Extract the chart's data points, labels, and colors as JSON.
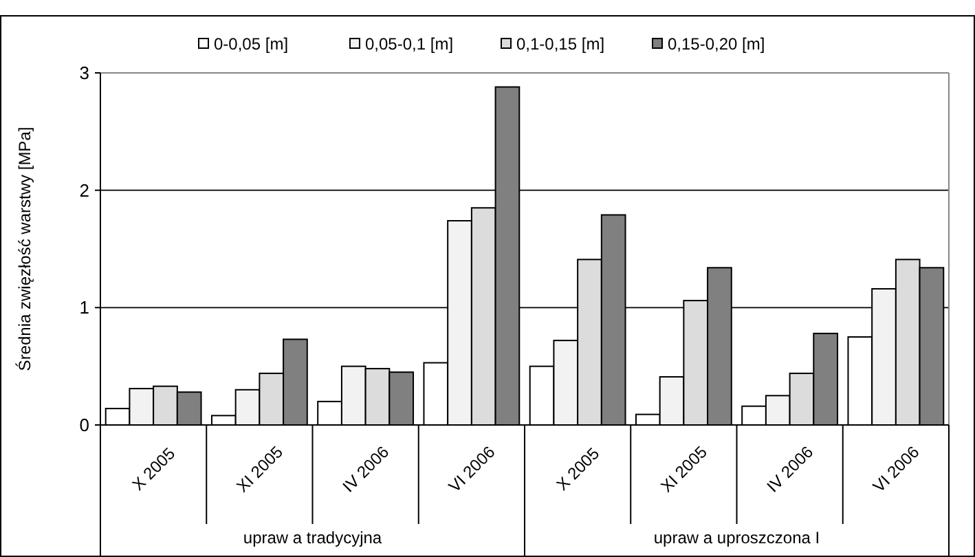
{
  "chart_data": {
    "type": "bar",
    "ylabel": "Średnia zwięzłość warstwy  [MPa]",
    "categories": [
      "X 2005",
      "XI 2005",
      "IV 2006",
      "VI 2006",
      "X 2005",
      "XI 2005",
      "IV 2006",
      "VI 2006"
    ],
    "annotations": [
      "upraw a tradycyjna",
      "upraw a uproszczona I"
    ],
    "series": [
      {
        "name": "0-0,05 [m]",
        "color": "#ffffff",
        "values": [
          0.14,
          0.08,
          0.2,
          0.53,
          0.5,
          0.09,
          0.16,
          0.75
        ]
      },
      {
        "name": "0,05-0,1 [m]",
        "color": "#f2f2f2",
        "values": [
          0.31,
          0.3,
          0.5,
          1.74,
          0.72,
          0.41,
          0.25,
          1.16
        ]
      },
      {
        "name": "0,1-0,15 [m]",
        "color": "#dcdcdc",
        "values": [
          0.33,
          0.44,
          0.48,
          1.85,
          1.41,
          1.06,
          0.44,
          1.41
        ]
      },
      {
        "name": "0,15-0,20 [m]",
        "color": "#808080",
        "values": [
          0.28,
          0.73,
          0.45,
          2.88,
          1.79,
          1.34,
          0.78,
          1.34
        ]
      }
    ],
    "ylim": [
      0,
      3
    ],
    "yticks": [
      0,
      1,
      2,
      3
    ],
    "grid": "y",
    "legend": "top"
  }
}
